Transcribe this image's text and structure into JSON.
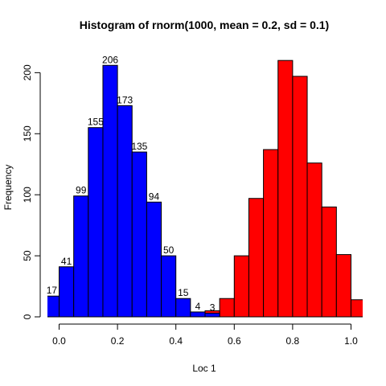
{
  "chart_data": {
    "type": "bar",
    "title": "Histogram of rnorm(1000, mean = 0.2, sd = 0.1)",
    "xlabel": "Loc 1",
    "ylabel": "Frequency",
    "xlim": [
      -0.04,
      1.04
    ],
    "ylim": [
      0,
      220
    ],
    "x_ticks": [
      0.0,
      0.2,
      0.4,
      0.6,
      0.8,
      1.0
    ],
    "x_tick_labels": [
      "0.0",
      "0.2",
      "0.4",
      "0.6",
      "0.8",
      "1.0"
    ],
    "y_ticks": [
      0,
      50,
      100,
      150,
      200
    ],
    "y_tick_labels": [
      "0",
      "50",
      "100",
      "150",
      "200"
    ],
    "grid": false,
    "bin_width": 0.05,
    "series": [
      {
        "color": "#0000ff",
        "bin_starts": [
          -0.05,
          0.0,
          0.05,
          0.1,
          0.15,
          0.2,
          0.25,
          0.3,
          0.35,
          0.4,
          0.45,
          0.5
        ],
        "values": [
          17,
          41,
          99,
          155,
          206,
          173,
          135,
          94,
          50,
          15,
          4,
          3
        ],
        "labels": [
          "17",
          "41",
          "99",
          "155",
          "206",
          "173",
          "135",
          "94",
          "50",
          "15",
          "4",
          "3"
        ]
      },
      {
        "color": "#ff0000",
        "bin_starts": [
          0.4,
          0.45,
          0.5,
          0.55,
          0.6,
          0.65,
          0.7,
          0.75,
          0.8,
          0.85,
          0.9,
          0.95,
          1.0
        ],
        "values": [
          2,
          2,
          5,
          15,
          50,
          97,
          137,
          210,
          197,
          126,
          90,
          51,
          14
        ]
      }
    ]
  }
}
